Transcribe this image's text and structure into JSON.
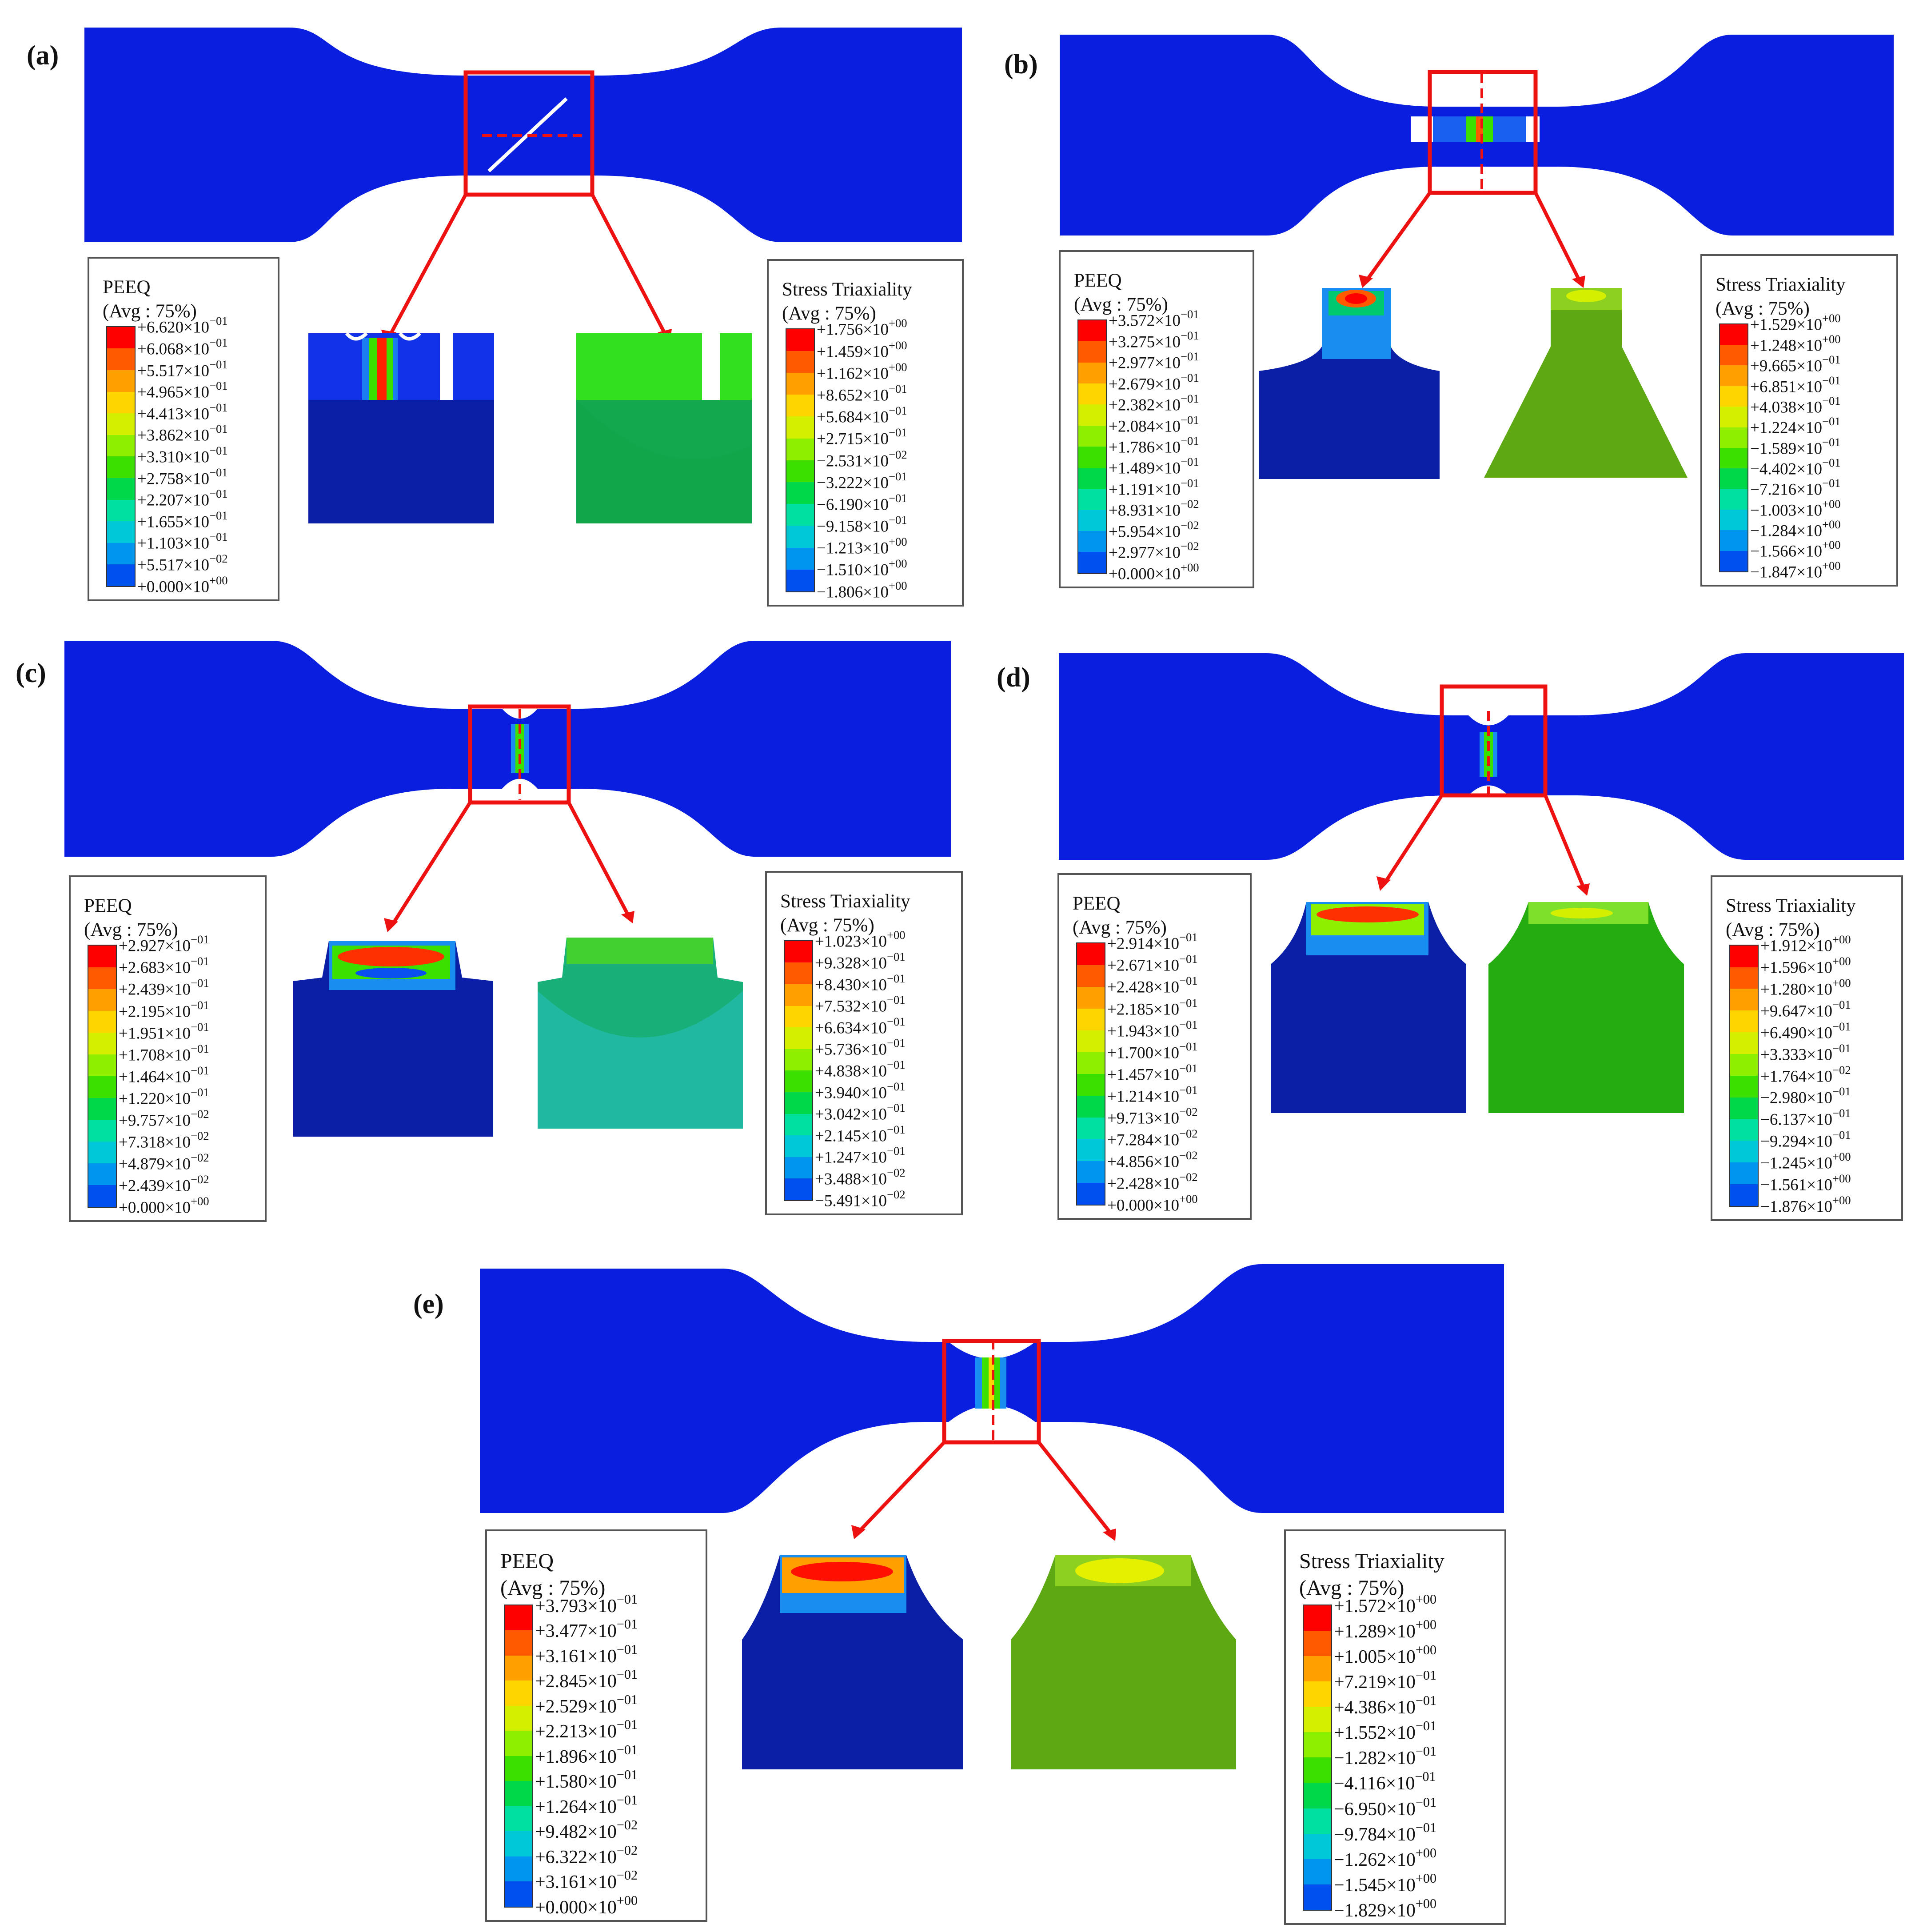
{
  "panels": [
    {
      "label": "(a)",
      "peeq": {
        "title": "PEEQ",
        "avg": "(Avg : 75%)",
        "values": [
          "+6.620×10",
          "+6.068×10",
          "+5.517×10",
          "+4.965×10",
          "+4.413×10",
          "+3.862×10",
          "+3.310×10",
          "+2.758×10",
          "+2.207×10",
          "+1.655×10",
          "+1.103×10",
          "+5.517×10",
          "+0.000×10"
        ],
        "exps": [
          "−01",
          "−01",
          "−01",
          "−01",
          "−01",
          "−01",
          "−01",
          "−01",
          "−01",
          "−01",
          "−01",
          "−02",
          "+00"
        ]
      },
      "triax": {
        "title": "Stress Triaxiality",
        "avg": "(Avg : 75%)",
        "values": [
          "+1.756×10",
          "+1.459×10",
          "+1.162×10",
          "+8.652×10",
          "+5.684×10",
          "+2.715×10",
          "−2.531×10",
          "−3.222×10",
          "−6.190×10",
          "−9.158×10",
          "−1.213×10",
          "−1.510×10",
          "−1.806×10"
        ],
        "exps": [
          "+00",
          "+00",
          "+00",
          "−01",
          "−01",
          "−01",
          "−02",
          "−01",
          "−01",
          "−01",
          "+00",
          "+00",
          "+00"
        ]
      }
    },
    {
      "label": "(b)",
      "peeq": {
        "title": "PEEQ",
        "avg": "(Avg : 75%)",
        "values": [
          "+3.572×10",
          "+3.275×10",
          "+2.977×10",
          "+2.679×10",
          "+2.382×10",
          "+2.084×10",
          "+1.786×10",
          "+1.489×10",
          "+1.191×10",
          "+8.931×10",
          "+5.954×10",
          "+2.977×10",
          "+0.000×10"
        ],
        "exps": [
          "−01",
          "−01",
          "−01",
          "−01",
          "−01",
          "−01",
          "−01",
          "−01",
          "−01",
          "−02",
          "−02",
          "−02",
          "+00"
        ]
      },
      "triax": {
        "title": "Stress Triaxiality",
        "avg": "(Avg : 75%)",
        "values": [
          "+1.529×10",
          "+1.248×10",
          "+9.665×10",
          "+6.851×10",
          "+4.038×10",
          "+1.224×10",
          "−1.589×10",
          "−4.402×10",
          "−7.216×10",
          "−1.003×10",
          "−1.284×10",
          "−1.566×10",
          "−1.847×10"
        ],
        "exps": [
          "+00",
          "+00",
          "−01",
          "−01",
          "−01",
          "−01",
          "−01",
          "−01",
          "−01",
          "+00",
          "+00",
          "+00",
          "+00"
        ]
      }
    },
    {
      "label": "(c)",
      "peeq": {
        "title": "PEEQ",
        "avg": "(Avg : 75%)",
        "values": [
          "+2.927×10",
          "+2.683×10",
          "+2.439×10",
          "+2.195×10",
          "+1.951×10",
          "+1.708×10",
          "+1.464×10",
          "+1.220×10",
          "+9.757×10",
          "+7.318×10",
          "+4.879×10",
          "+2.439×10",
          "+0.000×10"
        ],
        "exps": [
          "−01",
          "−01",
          "−01",
          "−01",
          "−01",
          "−01",
          "−01",
          "−01",
          "−02",
          "−02",
          "−02",
          "−02",
          "+00"
        ]
      },
      "triax": {
        "title": "Stress Triaxiality",
        "avg": "(Avg : 75%)",
        "values": [
          "+1.023×10",
          "+9.328×10",
          "+8.430×10",
          "+7.532×10",
          "+6.634×10",
          "+5.736×10",
          "+4.838×10",
          "+3.940×10",
          "+3.042×10",
          "+2.145×10",
          "+1.247×10",
          "+3.488×10",
          "−5.491×10"
        ],
        "exps": [
          "+00",
          "−01",
          "−01",
          "−01",
          "−01",
          "−01",
          "−01",
          "−01",
          "−01",
          "−01",
          "−01",
          "−02",
          "−02"
        ]
      }
    },
    {
      "label": "(d)",
      "peeq": {
        "title": "PEEQ",
        "avg": "(Avg : 75%)",
        "values": [
          "+2.914×10",
          "+2.671×10",
          "+2.428×10",
          "+2.185×10",
          "+1.943×10",
          "+1.700×10",
          "+1.457×10",
          "+1.214×10",
          "+9.713×10",
          "+7.284×10",
          "+4.856×10",
          "+2.428×10",
          "+0.000×10"
        ],
        "exps": [
          "−01",
          "−01",
          "−01",
          "−01",
          "−01",
          "−01",
          "−01",
          "−01",
          "−02",
          "−02",
          "−02",
          "−02",
          "+00"
        ]
      },
      "triax": {
        "title": "Stress Triaxiality",
        "avg": "(Avg : 75%)",
        "values": [
          "+1.912×10",
          "+1.596×10",
          "+1.280×10",
          "+9.647×10",
          "+6.490×10",
          "+3.333×10",
          "+1.764×10",
          "−2.980×10",
          "−6.137×10",
          "−9.294×10",
          "−1.245×10",
          "−1.561×10",
          "−1.876×10"
        ],
        "exps": [
          "+00",
          "+00",
          "+00",
          "−01",
          "−01",
          "−01",
          "−02",
          "−01",
          "−01",
          "−01",
          "+00",
          "+00",
          "+00"
        ]
      }
    },
    {
      "label": "(e)",
      "peeq": {
        "title": "PEEQ",
        "avg": "(Avg : 75%)",
        "values": [
          "+3.793×10",
          "+3.477×10",
          "+3.161×10",
          "+2.845×10",
          "+2.529×10",
          "+2.213×10",
          "+1.896×10",
          "+1.580×10",
          "+1.264×10",
          "+9.482×10",
          "+6.322×10",
          "+3.161×10",
          "+0.000×10"
        ],
        "exps": [
          "−01",
          "−01",
          "−01",
          "−01",
          "−01",
          "−01",
          "−01",
          "−01",
          "−01",
          "−02",
          "−02",
          "−02",
          "+00"
        ]
      },
      "triax": {
        "title": "Stress Triaxiality",
        "avg": "(Avg : 75%)",
        "values": [
          "+1.572×10",
          "+1.289×10",
          "+1.005×10",
          "+7.219×10",
          "+4.386×10",
          "+1.552×10",
          "−1.282×10",
          "−4.116×10",
          "−6.950×10",
          "−9.784×10",
          "−1.262×10",
          "−1.545×10",
          "−1.829×10"
        ],
        "exps": [
          "+00",
          "+00",
          "+00",
          "−01",
          "−01",
          "−01",
          "−01",
          "−01",
          "−01",
          "−01",
          "+00",
          "+00",
          "+00"
        ]
      }
    }
  ],
  "colors": {
    "specimen_blue": "#0a1ee0",
    "highlight_red": "#ee1111",
    "contour_scale": [
      "#ff0000",
      "#ff5a00",
      "#ffa000",
      "#ffd500",
      "#d4f000",
      "#8ef000",
      "#3ce000",
      "#00d84a",
      "#00e0a0",
      "#00c8d8",
      "#0096f0",
      "#0050f0",
      "#0014e8"
    ]
  }
}
